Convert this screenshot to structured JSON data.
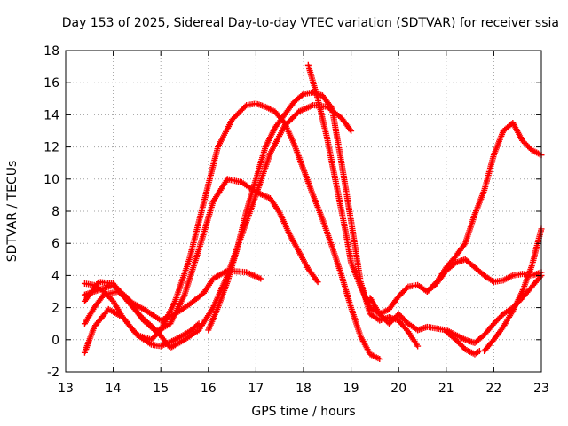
{
  "chart_data": {
    "type": "scatter",
    "title": "Day 153 of 2025, Sidereal Day-to-day VTEC variation (SDTVAR) for receiver ssia",
    "xlabel": "GPS time / hours",
    "ylabel": "SDTVAR / TECUs",
    "xlim": [
      13,
      23
    ],
    "ylim": [
      -2,
      18
    ],
    "xticks": [
      13,
      14,
      15,
      16,
      17,
      18,
      19,
      20,
      21,
      22,
      23
    ],
    "yticks": [
      -2,
      0,
      2,
      4,
      6,
      8,
      10,
      12,
      14,
      16,
      18
    ],
    "grid": true,
    "marker": "+",
    "color": "#ff0000",
    "series": [
      {
        "name": "s1",
        "x": [
          13.4,
          13.6,
          13.8,
          14.0,
          14.2,
          14.5,
          14.8,
          15.0,
          15.3,
          15.6,
          15.9,
          16.2,
          16.5,
          16.8,
          17.0,
          17.2,
          17.4,
          17.6,
          17.8,
          18.0,
          18.2,
          18.4,
          18.6,
          18.8,
          19.0,
          19.2,
          19.4,
          19.6
        ],
        "y": [
          3.5,
          3.4,
          3.0,
          2.4,
          1.4,
          0.3,
          0.0,
          0.6,
          2.4,
          5.0,
          8.5,
          12.0,
          13.7,
          14.6,
          14.7,
          14.5,
          14.2,
          13.5,
          12.2,
          10.6,
          9.0,
          7.5,
          5.8,
          4.0,
          2.0,
          0.2,
          -0.9,
          -1.2
        ]
      },
      {
        "name": "s2",
        "x": [
          13.4,
          13.6,
          13.8,
          14.0,
          14.3,
          14.6,
          14.9,
          15.2,
          15.5,
          15.8,
          16.1,
          16.4,
          16.7,
          17.0,
          17.3,
          17.5,
          17.7,
          17.9,
          18.1,
          18.3
        ],
        "y": [
          2.8,
          3.0,
          3.2,
          3.4,
          2.6,
          1.3,
          0.5,
          1.0,
          2.8,
          5.6,
          8.6,
          10.0,
          9.8,
          9.2,
          8.8,
          7.9,
          6.6,
          5.5,
          4.4,
          3.6
        ]
      },
      {
        "name": "s3",
        "x": [
          13.4,
          13.7,
          14.0,
          14.3,
          14.6,
          14.9,
          15.2,
          15.5,
          15.8,
          16.1,
          16.4,
          16.7,
          17.0,
          17.3,
          17.6,
          17.9,
          18.2,
          18.5,
          18.8,
          19.0
        ],
        "y": [
          2.4,
          3.6,
          3.5,
          2.4,
          1.4,
          0.6,
          -0.5,
          0.0,
          0.6,
          2.0,
          4.0,
          6.5,
          9.0,
          11.6,
          13.3,
          14.2,
          14.6,
          14.5,
          13.8,
          13.0
        ]
      },
      {
        "name": "s4",
        "x": [
          13.4,
          13.6,
          13.8,
          14.1,
          14.4,
          14.7,
          15.0,
          15.3,
          15.6,
          15.9,
          16.1,
          16.4,
          16.8,
          17.1
        ],
        "y": [
          1.0,
          2.0,
          2.8,
          3.0,
          2.3,
          1.8,
          1.2,
          1.6,
          2.2,
          2.9,
          3.8,
          4.3,
          4.2,
          3.8
        ]
      },
      {
        "name": "s5",
        "x": [
          13.4,
          13.6,
          13.9,
          14.2,
          14.5,
          14.8,
          15.0,
          15.3,
          15.6,
          15.8
        ],
        "y": [
          -0.8,
          0.8,
          1.9,
          1.4,
          0.3,
          -0.3,
          -0.4,
          0.0,
          0.5,
          1.0
        ]
      },
      {
        "name": "s6",
        "x": [
          16.0,
          16.2,
          16.4,
          16.6,
          16.8,
          17.0,
          17.2,
          17.4,
          17.6,
          17.8,
          18.0,
          18.2,
          18.4,
          18.6,
          18.8,
          19.0,
          19.2,
          19.4,
          19.6,
          19.8,
          20.0,
          20.2,
          20.4
        ],
        "y": [
          0.6,
          2.0,
          3.6,
          5.6,
          8.0,
          10.0,
          12.0,
          13.2,
          14.0,
          14.8,
          15.3,
          15.4,
          15.2,
          14.4,
          11.0,
          7.4,
          3.6,
          1.6,
          1.2,
          1.4,
          1.2,
          0.5,
          -0.4
        ]
      },
      {
        "name": "s7",
        "x": [
          18.1,
          18.3,
          18.5,
          18.7,
          18.9,
          19.0,
          19.2,
          19.4,
          19.6,
          19.8,
          20.0,
          20.2,
          20.4,
          20.6,
          20.8,
          21.0,
          21.2,
          21.4,
          21.6,
          21.8,
          22.0,
          22.2,
          22.4,
          22.6,
          22.8,
          23.0
        ],
        "y": [
          17.1,
          15.0,
          12.5,
          9.5,
          6.5,
          4.8,
          3.3,
          2.0,
          1.6,
          1.9,
          2.7,
          3.3,
          3.4,
          3.0,
          3.5,
          4.3,
          4.8,
          5.0,
          4.5,
          4.0,
          3.6,
          3.7,
          4.0,
          4.1,
          4.0,
          4.2
        ]
      },
      {
        "name": "s8",
        "x": [
          19.4,
          19.6,
          19.8,
          20.0,
          20.2,
          20.4,
          20.6,
          20.8,
          21.0,
          21.2,
          21.4,
          21.6,
          21.8,
          22.0,
          22.2,
          22.4,
          22.6,
          22.8,
          23.0
        ],
        "y": [
          2.6,
          1.6,
          1.0,
          1.6,
          1.0,
          0.6,
          0.8,
          0.7,
          0.6,
          0.3,
          0.0,
          -0.2,
          0.3,
          1.0,
          1.6,
          2.0,
          2.6,
          3.3,
          4.0
        ]
      },
      {
        "name": "s9",
        "x": [
          20.6,
          20.8,
          21.0,
          21.2,
          21.4,
          21.6,
          21.8,
          22.0,
          22.2,
          22.4,
          22.6,
          22.8,
          23.0
        ],
        "y": [
          3.0,
          3.6,
          4.5,
          5.2,
          6.0,
          7.8,
          9.3,
          11.5,
          13.0,
          13.5,
          12.4,
          11.8,
          11.5
        ]
      },
      {
        "name": "s10",
        "x": [
          21.0,
          21.2,
          21.4,
          21.6,
          21.7
        ],
        "y": [
          0.5,
          0.0,
          -0.6,
          -0.9,
          -0.7
        ]
      },
      {
        "name": "s11",
        "x": [
          21.8,
          22.0,
          22.2,
          22.4,
          22.6,
          22.8,
          23.0
        ],
        "y": [
          -0.7,
          0.0,
          0.8,
          1.8,
          3.0,
          4.6,
          6.9
        ]
      }
    ]
  }
}
